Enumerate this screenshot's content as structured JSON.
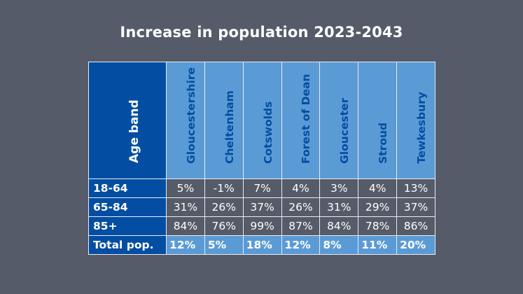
{
  "title": "Increase in population 2023-2043",
  "chart_data": {
    "type": "table",
    "title": "Increase in population 2023-2043",
    "row_header": "Age band",
    "columns": [
      "Gloucestershire",
      "Cheltenham",
      "Cotswolds",
      "Forest of Dean",
      "Gloucester",
      "Stroud",
      "Tewkesbury"
    ],
    "rows": [
      {
        "label": "18-64",
        "values": [
          "5%",
          "-1%",
          "7%",
          "4%",
          "3%",
          "4%",
          "13%"
        ]
      },
      {
        "label": "65-84",
        "values": [
          "31%",
          "26%",
          "37%",
          "26%",
          "31%",
          "29%",
          "37%"
        ]
      },
      {
        "label": "85+",
        "values": [
          "84%",
          "76%",
          "99%",
          "87%",
          "84%",
          "78%",
          "86%"
        ]
      }
    ],
    "total": {
      "label": "Total pop.",
      "values": [
        "12%",
        "5%",
        "18%",
        "12%",
        "8%",
        "11%",
        "20%"
      ]
    }
  },
  "colors": {
    "background": "#565b69",
    "dark_blue": "#034ea2",
    "light_blue": "#5b9bd5",
    "text_white": "#ffffff"
  }
}
